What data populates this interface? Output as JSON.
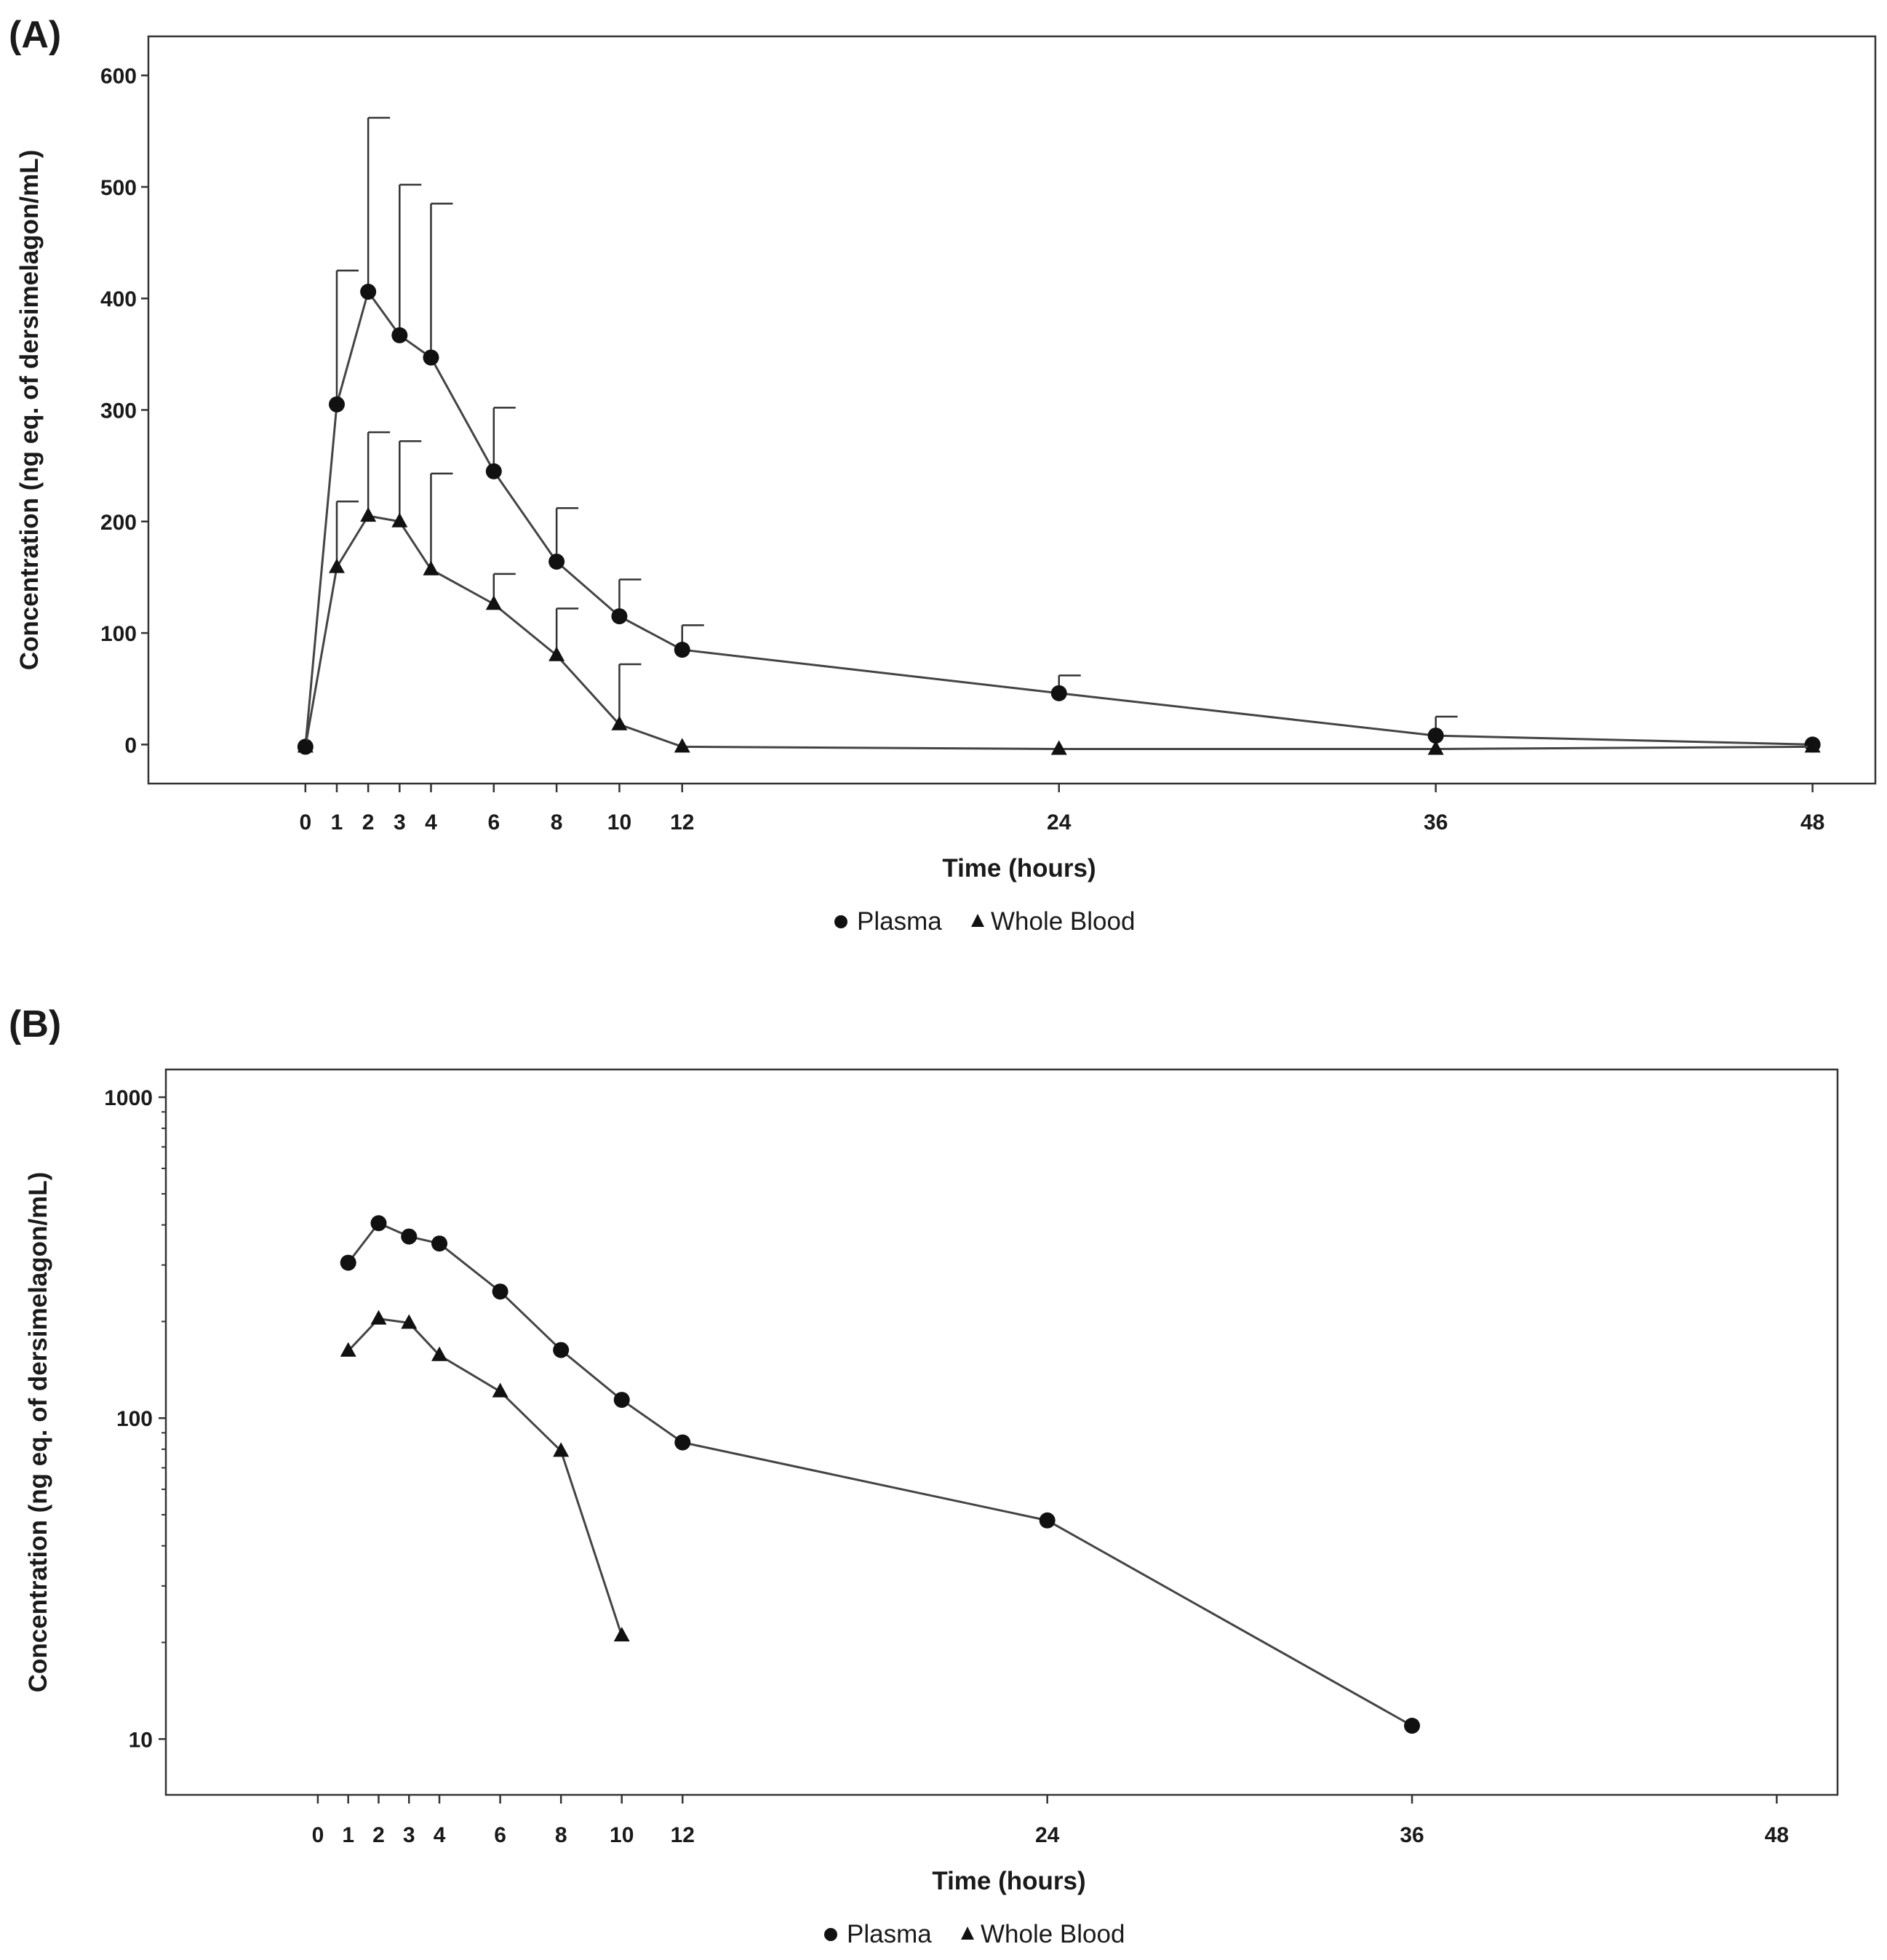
{
  "chart_data": [
    {
      "panel_label": "(A)",
      "type": "line",
      "yscale": "linear",
      "xlabel": "Time (hours)",
      "ylabel": "Concentration (ng eq. of dersimelagon/mL)",
      "xlim": [
        -5,
        50
      ],
      "ylim": [
        -35,
        635
      ],
      "x_ticks": [
        0,
        1,
        2,
        3,
        4,
        6,
        8,
        10,
        12,
        24,
        36,
        48
      ],
      "y_ticks": [
        0,
        100,
        200,
        300,
        400,
        500,
        600
      ],
      "legend": [
        "Plasma",
        "Whole Blood"
      ],
      "legend_position": "bottom-center",
      "series": [
        {
          "name": "Plasma",
          "marker": "circle",
          "x": [
            0,
            1,
            2,
            3,
            4,
            6,
            8,
            10,
            12,
            24,
            36,
            48
          ],
          "values": [
            -2,
            305,
            406,
            367,
            347,
            245,
            164,
            115,
            85,
            46,
            8,
            0
          ],
          "error_upper": [
            null,
            425,
            562,
            502,
            485,
            302,
            212,
            148,
            107,
            62,
            25,
            null
          ]
        },
        {
          "name": "Whole Blood",
          "marker": "triangle",
          "x": [
            0,
            1,
            2,
            3,
            4,
            6,
            8,
            10,
            12,
            24,
            36,
            48
          ],
          "values": [
            -2,
            159,
            205,
            200,
            157,
            126,
            80,
            18,
            -2,
            -4,
            -4,
            -2
          ],
          "error_upper": [
            null,
            218,
            280,
            272,
            243,
            153,
            122,
            72,
            null,
            null,
            null,
            null
          ]
        }
      ]
    },
    {
      "panel_label": "(B)",
      "type": "line",
      "yscale": "log",
      "xlabel": "Time (hours)",
      "ylabel": "Concentration (ng eq. of dersimelagon/mL)",
      "xlim": [
        -5,
        50
      ],
      "ylim": [
        6.7,
        1220
      ],
      "x_ticks": [
        0,
        1,
        2,
        3,
        4,
        6,
        8,
        10,
        12,
        24,
        36,
        48
      ],
      "y_ticks": [
        10,
        100,
        1000
      ],
      "legend": [
        "Plasma",
        "Whole Blood"
      ],
      "legend_position": "bottom-center",
      "series": [
        {
          "name": "Plasma",
          "marker": "circle",
          "x": [
            1,
            2,
            3,
            4,
            6,
            8,
            10,
            12,
            24,
            36
          ],
          "values": [
            305,
            405,
            368,
            350,
            248,
            163,
            114,
            84,
            48,
            11
          ]
        },
        {
          "name": "Whole Blood",
          "marker": "triangle",
          "x": [
            1,
            2,
            3,
            4,
            6,
            8,
            10
          ],
          "values": [
            162,
            204,
            198,
            157,
            121,
            79,
            21
          ]
        }
      ]
    }
  ]
}
